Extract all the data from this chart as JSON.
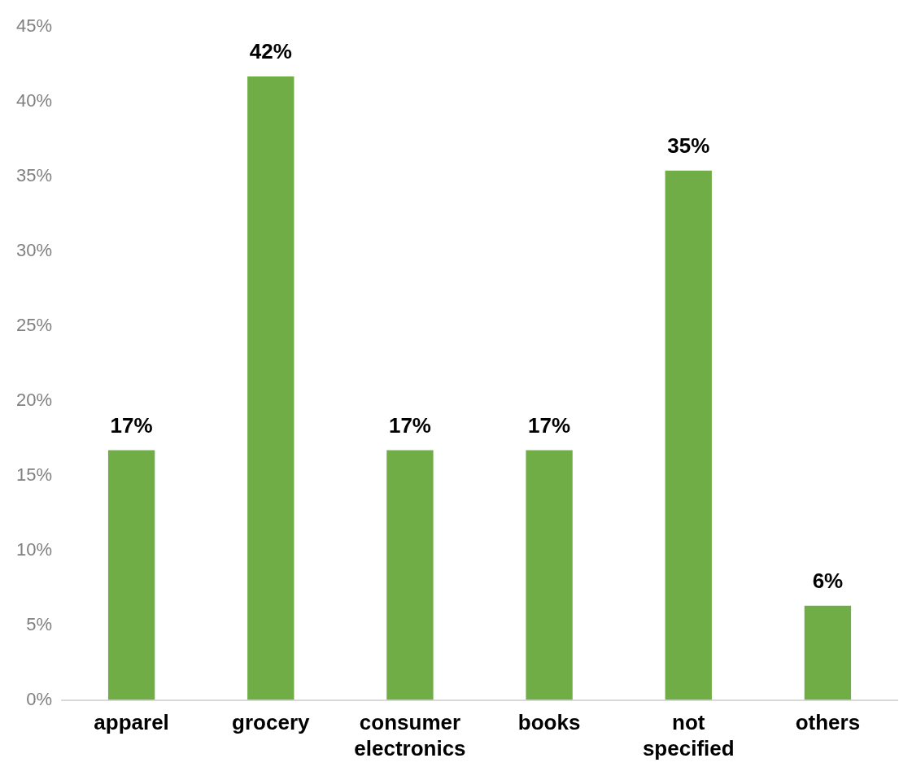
{
  "chart_data": {
    "type": "bar",
    "categories": [
      "apparel",
      "grocery",
      "consumer electronics",
      "books",
      "not specified",
      "others"
    ],
    "values": [
      16.7,
      41.7,
      16.7,
      16.7,
      35.4,
      6.3
    ],
    "value_labels": [
      "17%",
      "42%",
      "17%",
      "17%",
      "35%",
      "6%"
    ],
    "color": "#70ad47",
    "ylim": [
      0,
      45
    ],
    "yticks": [
      {
        "value": 0,
        "label": "0%"
      },
      {
        "value": 5,
        "label": "5%"
      },
      {
        "value": 10,
        "label": "10%"
      },
      {
        "value": 15,
        "label": "15%"
      },
      {
        "value": 20,
        "label": "20%"
      },
      {
        "value": 25,
        "label": "25%"
      },
      {
        "value": 30,
        "label": "30%"
      },
      {
        "value": 35,
        "label": "35%"
      },
      {
        "value": 40,
        "label": "40%"
      },
      {
        "value": 45,
        "label": "45%"
      }
    ],
    "grid": false,
    "legend": false
  }
}
